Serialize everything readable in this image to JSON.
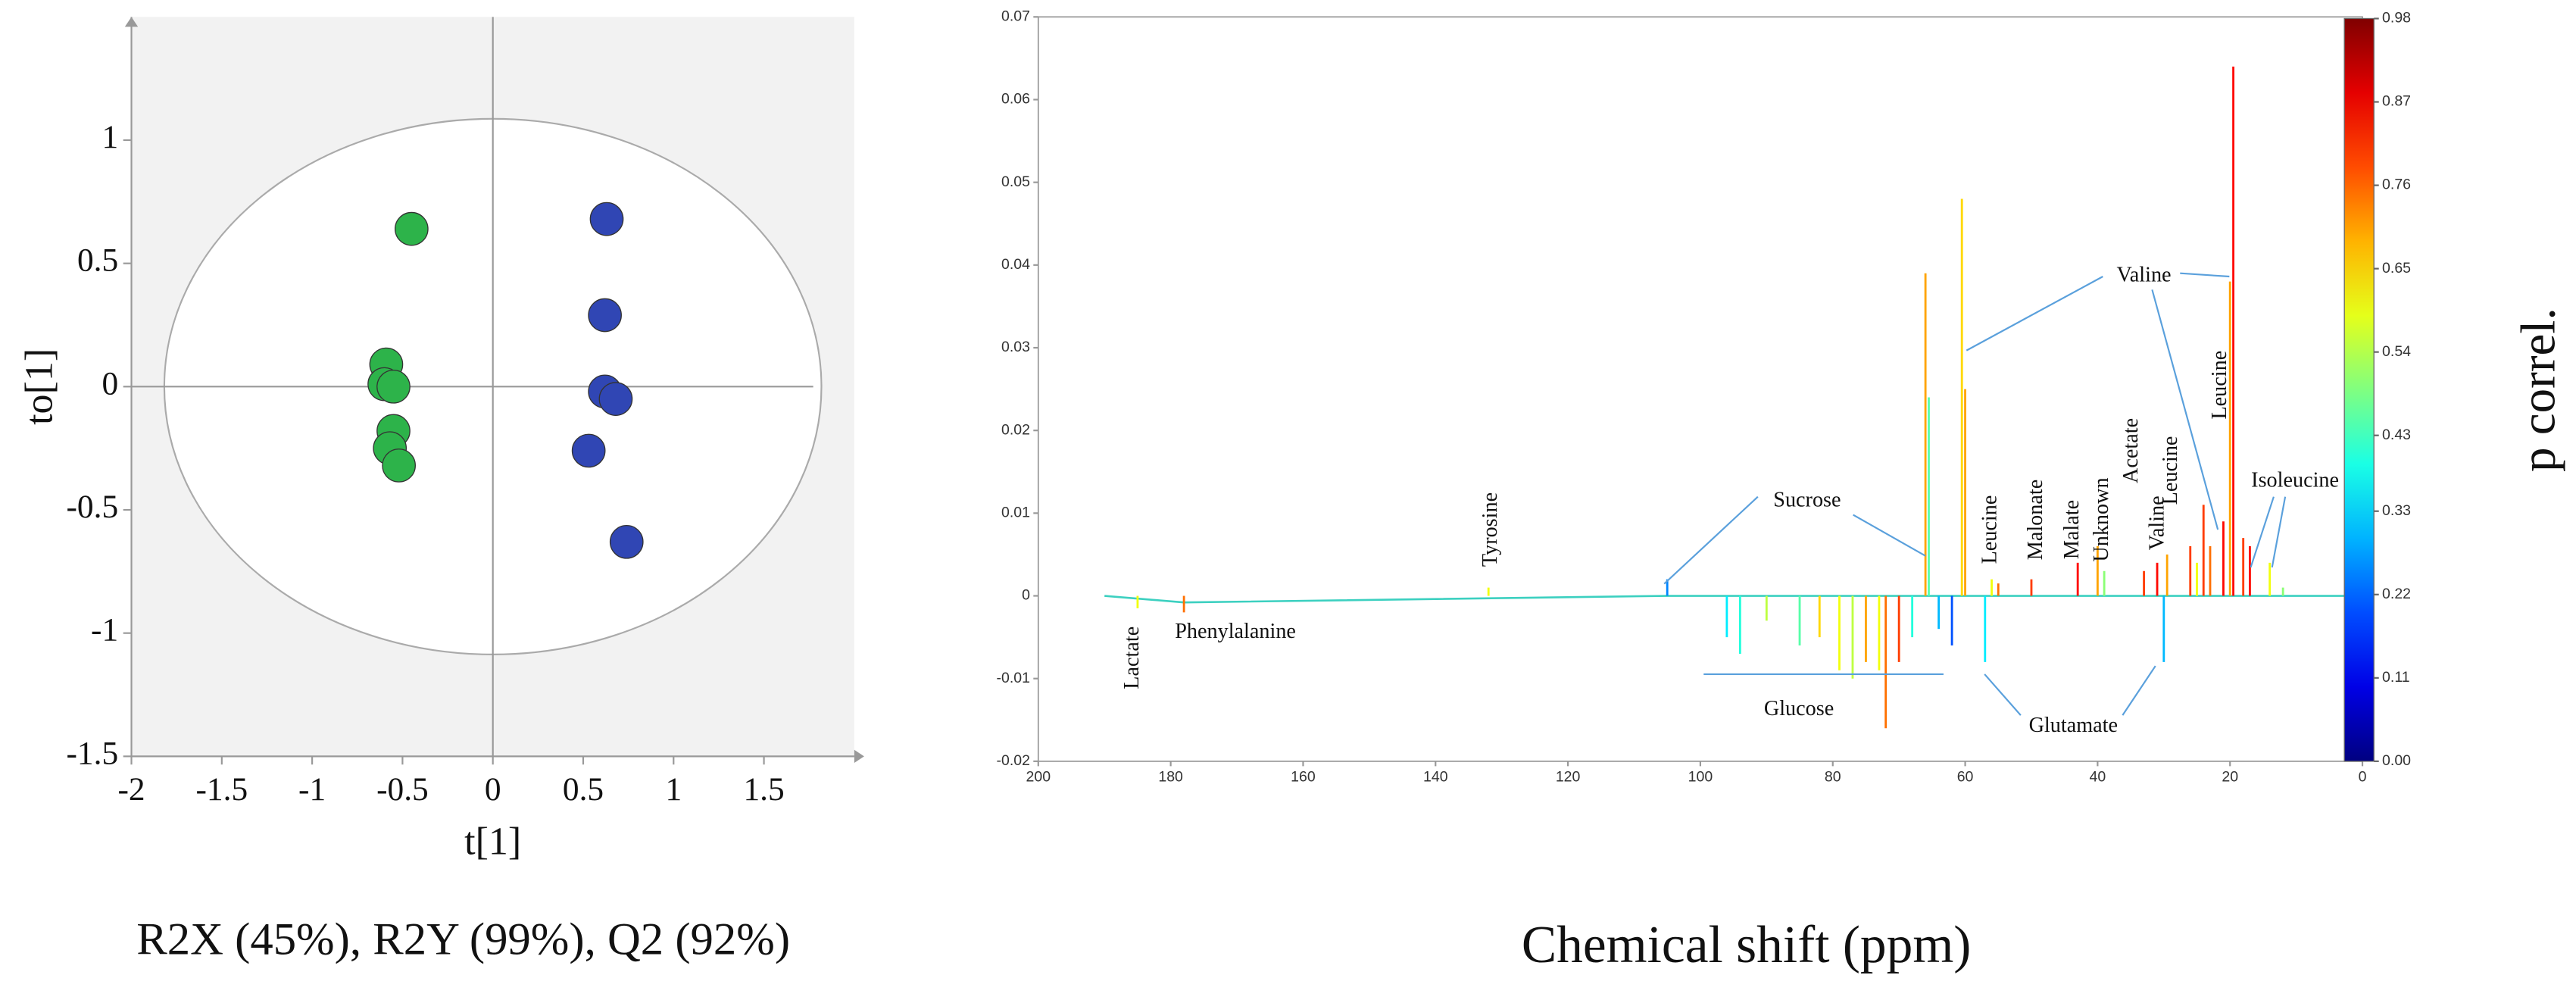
{
  "chart_data": [
    {
      "type": "scatter",
      "xlabel": "t[1]",
      "ylabel": "to[1]",
      "caption": "R2X  (45%), R2Y (99%), Q2 (92%)",
      "xlim": [
        -2,
        2
      ],
      "ylim": [
        -1.5,
        1.5
      ],
      "xticks": [
        -2,
        -1.5,
        -1,
        -0.5,
        0,
        0.5,
        1,
        1.5
      ],
      "yticks": [
        -1.5,
        -1,
        -0.5,
        0,
        0.5,
        1
      ],
      "series": [
        {
          "color": "#2db34a",
          "x": [
            -0.45,
            -0.59,
            -0.6,
            -0.55,
            -0.55,
            -0.57,
            -0.52
          ],
          "values": [
            0.64,
            0.09,
            0.01,
            0,
            -0.18,
            -0.25,
            -0.32
          ]
        },
        {
          "color": "#3046b4",
          "x": [
            0.63,
            0.62,
            0.62,
            0.68,
            0.53,
            0.74
          ],
          "values": [
            0.68,
            0.29,
            -0.02,
            -0.05,
            -0.26,
            -0.63
          ]
        }
      ]
    },
    {
      "type": "stick",
      "xlabel": "Chemical shift (ppm)",
      "colorbar_label": "p correl.",
      "xlim": [
        200,
        0
      ],
      "ylim": [
        -0.02,
        0.07
      ],
      "xticks": [
        200,
        180,
        160,
        140,
        120,
        100,
        80,
        60,
        40,
        20,
        0
      ],
      "yticks": [
        -0.02,
        -0.01,
        0,
        0.01,
        0.02,
        0.03,
        0.04,
        0.05,
        0.06,
        0.07
      ],
      "clim": [
        0,
        0.98
      ],
      "cticks": [
        {
          "value": 0,
          "label": "0.00"
        },
        {
          "value": 0.11,
          "label": "0.11"
        },
        {
          "value": 0.22,
          "label": "0.22"
        },
        {
          "value": 0.33,
          "label": "0.33"
        },
        {
          "value": 0.43,
          "label": "0.43"
        },
        {
          "value": 0.54,
          "label": "0.54"
        },
        {
          "value": 0.65,
          "label": "0.65"
        },
        {
          "value": 0.76,
          "label": "0.76"
        },
        {
          "value": 0.87,
          "label": "0.87"
        },
        {
          "value": 0.98,
          "label": "0.98"
        }
      ],
      "x": [
        185,
        178,
        132,
        105,
        96,
        94,
        90,
        85,
        82,
        79,
        77,
        75,
        73,
        72,
        70,
        68,
        66,
        65.5,
        64,
        62,
        60.5,
        60,
        57,
        56,
        55,
        50,
        43,
        40,
        39,
        33,
        31,
        30,
        29.5,
        26,
        25,
        24,
        23,
        21,
        20,
        19.5,
        18,
        17,
        14,
        12,
        2
      ],
      "values": [
        -0.0015,
        -0.002,
        0.001,
        0.002,
        -0.005,
        -0.007,
        -0.003,
        -0.006,
        -0.005,
        -0.009,
        -0.01,
        -0.008,
        -0.009,
        -0.016,
        -0.008,
        -0.005,
        0.039,
        0.024,
        -0.004,
        -0.006,
        0.048,
        0.025,
        -0.008,
        0.002,
        0.0015,
        0.002,
        0.004,
        0.006,
        0.003,
        0.003,
        0.004,
        -0.008,
        0.005,
        0.006,
        0.004,
        0.011,
        0.006,
        0.009,
        0.038,
        0.064,
        0.007,
        0.006,
        0.004,
        0.001,
        0.0003
      ],
      "correlation": [
        0.6,
        0.75,
        0.6,
        0.25,
        0.35,
        0.4,
        0.55,
        0.45,
        0.65,
        0.6,
        0.55,
        0.7,
        0.6,
        0.75,
        0.8,
        0.4,
        0.7,
        0.45,
        0.3,
        0.2,
        0.65,
        0.7,
        0.35,
        0.6,
        0.75,
        0.8,
        0.85,
        0.7,
        0.5,
        0.8,
        0.85,
        0.3,
        0.7,
        0.8,
        0.6,
        0.8,
        0.75,
        0.85,
        0.7,
        0.85,
        0.8,
        0.85,
        0.6,
        0.5,
        0.4
      ],
      "annotations": [
        "Lactate",
        "Phenylalanine",
        "Tyrosine",
        "Sucrose",
        "Glucose",
        "Leucine",
        "Malonate",
        "Malate",
        "Unknown",
        "Glutamate",
        "Valine",
        "Acetate",
        "Leucine",
        "Leucine",
        "Valine",
        "Isoleucine"
      ]
    }
  ]
}
